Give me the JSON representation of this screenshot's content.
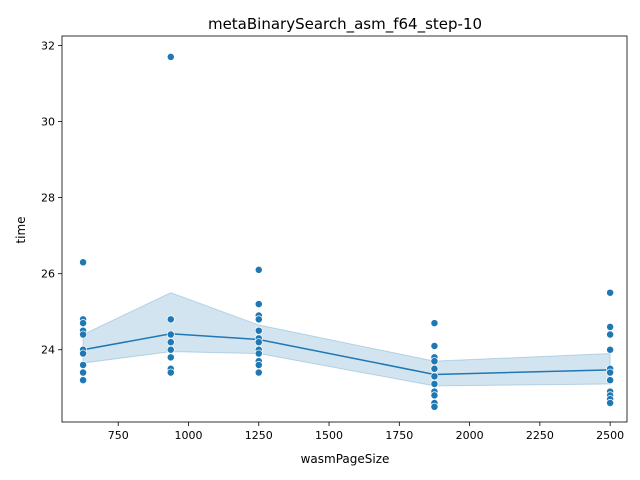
{
  "chart_data": {
    "type": "scatter",
    "title": "metaBinarySearch_asm_f64_step-10",
    "xlabel": "wasmPageSize",
    "ylabel": "time",
    "xlim": [
      550,
      2560
    ],
    "ylim": [
      22.1,
      32.25
    ],
    "x_ticks": [
      750,
      1000,
      1250,
      1500,
      1750,
      2000,
      2250,
      2500
    ],
    "y_ticks": [
      24,
      26,
      28,
      30,
      32
    ],
    "grid": false,
    "colors": {
      "points": "#1f77b4",
      "line": "#1f77b4",
      "band": "#1f77b4"
    },
    "points": [
      {
        "x": 625,
        "y": 26.3
      },
      {
        "x": 625,
        "y": 24.8
      },
      {
        "x": 625,
        "y": 24.7
      },
      {
        "x": 625,
        "y": 24.5
      },
      {
        "x": 625,
        "y": 24.4
      },
      {
        "x": 625,
        "y": 24.0
      },
      {
        "x": 625,
        "y": 23.9
      },
      {
        "x": 625,
        "y": 23.6
      },
      {
        "x": 625,
        "y": 23.4
      },
      {
        "x": 625,
        "y": 23.2
      },
      {
        "x": 937,
        "y": 31.7
      },
      {
        "x": 937,
        "y": 24.8
      },
      {
        "x": 937,
        "y": 24.4
      },
      {
        "x": 937,
        "y": 24.2
      },
      {
        "x": 937,
        "y": 24.0
      },
      {
        "x": 937,
        "y": 23.8
      },
      {
        "x": 937,
        "y": 23.5
      },
      {
        "x": 937,
        "y": 23.4
      },
      {
        "x": 1250,
        "y": 26.1
      },
      {
        "x": 1250,
        "y": 25.2
      },
      {
        "x": 1250,
        "y": 24.9
      },
      {
        "x": 1250,
        "y": 24.8
      },
      {
        "x": 1250,
        "y": 24.5
      },
      {
        "x": 1250,
        "y": 24.3
      },
      {
        "x": 1250,
        "y": 24.2
      },
      {
        "x": 1250,
        "y": 24.0
      },
      {
        "x": 1250,
        "y": 23.9
      },
      {
        "x": 1250,
        "y": 23.7
      },
      {
        "x": 1250,
        "y": 23.6
      },
      {
        "x": 1250,
        "y": 23.4
      },
      {
        "x": 1875,
        "y": 24.7
      },
      {
        "x": 1875,
        "y": 24.1
      },
      {
        "x": 1875,
        "y": 23.8
      },
      {
        "x": 1875,
        "y": 23.7
      },
      {
        "x": 1875,
        "y": 23.5
      },
      {
        "x": 1875,
        "y": 23.3
      },
      {
        "x": 1875,
        "y": 23.1
      },
      {
        "x": 1875,
        "y": 22.9
      },
      {
        "x": 1875,
        "y": 22.8
      },
      {
        "x": 1875,
        "y": 22.6
      },
      {
        "x": 1875,
        "y": 22.5
      },
      {
        "x": 2500,
        "y": 25.5
      },
      {
        "x": 2500,
        "y": 24.6
      },
      {
        "x": 2500,
        "y": 24.4
      },
      {
        "x": 2500,
        "y": 24.0
      },
      {
        "x": 2500,
        "y": 23.5
      },
      {
        "x": 2500,
        "y": 23.4
      },
      {
        "x": 2500,
        "y": 23.2
      },
      {
        "x": 2500,
        "y": 22.9
      },
      {
        "x": 2500,
        "y": 22.8
      },
      {
        "x": 2500,
        "y": 22.7
      },
      {
        "x": 2500,
        "y": 22.6
      }
    ],
    "mean_line": {
      "x": [
        625,
        937,
        1250,
        1875,
        2500
      ],
      "y": [
        24.0,
        24.42,
        24.27,
        23.35,
        23.47
      ]
    },
    "ci_band": {
      "x": [
        625,
        937,
        1250,
        1875,
        2500
      ],
      "lower": [
        23.65,
        23.95,
        23.9,
        23.05,
        23.1
      ],
      "upper": [
        24.4,
        25.5,
        24.65,
        23.7,
        23.9
      ]
    }
  }
}
